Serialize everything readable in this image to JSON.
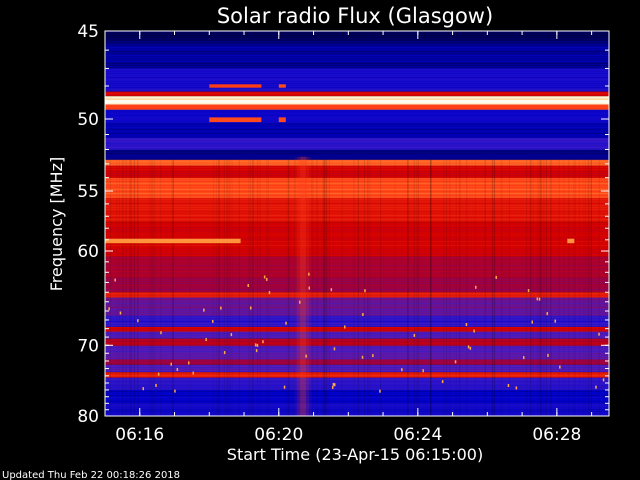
{
  "chart_data": {
    "type": "heatmap",
    "title": "Solar radio Flux (Glasgow)",
    "xlabel": "Start Time (23-Apr-15 06:15:00)",
    "ylabel": "Frequency [MHz]",
    "footer": "Updated Thu Feb 22 00:18:26 2018",
    "x_unit": "minutes after 06:15:00",
    "xlim": [
      0,
      14.5
    ],
    "ylim_mhz": [
      45,
      80
    ],
    "y_scale": "reciprocal",
    "x_ticks": [
      {
        "label": "06:16",
        "value": 1
      },
      {
        "label": "06:20",
        "value": 5
      },
      {
        "label": "06:24",
        "value": 9
      },
      {
        "label": "06:28",
        "value": 13
      }
    ],
    "y_ticks": [
      {
        "label": "45",
        "value": 45
      },
      {
        "label": "50",
        "value": 50
      },
      {
        "label": "55",
        "value": 55
      },
      {
        "label": "60",
        "value": 60
      },
      {
        "label": "70",
        "value": 70
      },
      {
        "label": "80",
        "value": 80
      }
    ],
    "colors": {
      "background": "#000000",
      "low": "#0000cc",
      "mid": "#cc0000",
      "high": "#ffd060",
      "max": "#ffffff"
    },
    "intensity_bands": [
      {
        "mhz": [
          45.0,
          45.6
        ],
        "level": 0.02
      },
      {
        "mhz": [
          45.6,
          47.0
        ],
        "level": 0.08
      },
      {
        "mhz": [
          47.0,
          48.3
        ],
        "level": 0.18
      },
      {
        "mhz": [
          48.3,
          48.6
        ],
        "level": 0.55
      },
      {
        "mhz": [
          48.6,
          48.8
        ],
        "level": 0.95
      },
      {
        "mhz": [
          48.8,
          49.1
        ],
        "level": 1.0
      },
      {
        "mhz": [
          49.1,
          49.4
        ],
        "level": 0.7
      },
      {
        "mhz": [
          49.4,
          50.3
        ],
        "level": 0.15
      },
      {
        "mhz": [
          50.3,
          51.2
        ],
        "level": 0.1
      },
      {
        "mhz": [
          51.2,
          52.0
        ],
        "level": 0.22
      },
      {
        "mhz": [
          52.0,
          52.7
        ],
        "level": 0.06
      },
      {
        "mhz": [
          52.7,
          53.1
        ],
        "level": 0.75
      },
      {
        "mhz": [
          53.1,
          54.0
        ],
        "level": 0.55
      },
      {
        "mhz": [
          54.0,
          55.5
        ],
        "level": 0.72
      },
      {
        "mhz": [
          55.5,
          57.5
        ],
        "level": 0.6
      },
      {
        "mhz": [
          57.5,
          60.5
        ],
        "level": 0.55
      },
      {
        "mhz": [
          60.5,
          62.5
        ],
        "level": 0.45
      },
      {
        "mhz": [
          62.5,
          64.0
        ],
        "level": 0.42
      },
      {
        "mhz": [
          64.0,
          64.5
        ],
        "level": 0.62
      },
      {
        "mhz": [
          64.5,
          66.5
        ],
        "level": 0.33
      },
      {
        "mhz": [
          66.5,
          67.8
        ],
        "level": 0.22
      },
      {
        "mhz": [
          67.8,
          68.3
        ],
        "level": 0.55
      },
      {
        "mhz": [
          68.3,
          69.2
        ],
        "level": 0.3
      },
      {
        "mhz": [
          69.2,
          70.0
        ],
        "level": 0.48
      },
      {
        "mhz": [
          70.0,
          71.8
        ],
        "level": 0.3
      },
      {
        "mhz": [
          71.8,
          72.5
        ],
        "level": 0.42
      },
      {
        "mhz": [
          72.5,
          73.5
        ],
        "level": 0.3
      },
      {
        "mhz": [
          73.5,
          74.2
        ],
        "level": 0.62
      },
      {
        "mhz": [
          74.2,
          76.0
        ],
        "level": 0.22
      },
      {
        "mhz": [
          76.0,
          78.0
        ],
        "level": 0.12
      },
      {
        "mhz": [
          78.0,
          80.0
        ],
        "level": 0.16
      }
    ],
    "burst": {
      "x_min": 5.7,
      "x_halfwidth_min": 0.25,
      "mhz": [
        52.5,
        80.0
      ],
      "boost": 0.28
    },
    "segments": [
      {
        "x": [
          3.0,
          4.5
        ],
        "mhz": [
          47.9,
          48.1
        ],
        "level": 0.7
      },
      {
        "x": [
          3.0,
          4.5
        ],
        "mhz": [
          49.9,
          50.2
        ],
        "level": 0.72
      },
      {
        "x": [
          5.0,
          5.2
        ],
        "mhz": [
          47.9,
          48.1
        ],
        "level": 0.72
      },
      {
        "x": [
          5.0,
          5.2
        ],
        "mhz": [
          49.9,
          50.2
        ],
        "level": 0.72
      },
      {
        "x": [
          0.0,
          3.9
        ],
        "mhz": [
          58.9,
          59.3
        ],
        "level": 0.82
      },
      {
        "x": [
          13.3,
          13.5
        ],
        "mhz": [
          58.9,
          59.3
        ],
        "level": 0.82
      }
    ]
  }
}
